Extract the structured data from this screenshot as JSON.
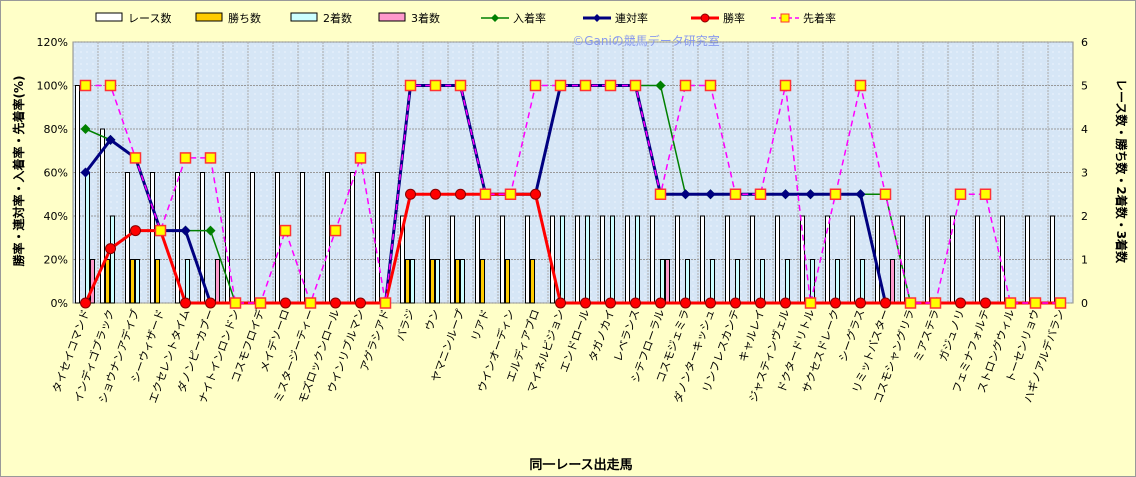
{
  "chart_data": {
    "type": "bar+line",
    "watermark": "©Ganiの競馬データ研究室",
    "xlabel": "同一レース出走馬",
    "ylabel_left": "勝率・連対率・入着率・先着率(%)",
    "ylabel_right": "レース数・勝ち数・2着数・3着数",
    "ylim_left": [
      0,
      120
    ],
    "ylim_right": [
      0,
      6
    ],
    "yticks_left": [
      "0%",
      "20%",
      "40%",
      "60%",
      "80%",
      "100%",
      "120%"
    ],
    "yticks_right": [
      "0",
      "1",
      "2",
      "3",
      "4",
      "5",
      "6"
    ],
    "legend": [
      "レース数",
      "勝ち数",
      "2着数",
      "3着数",
      "入着率",
      "連対率",
      "勝率",
      "先着率"
    ],
    "legend_position": "top",
    "colors": {
      "races": "#ffffff",
      "wins": "#ffcc00",
      "second": "#ccffff",
      "third": "#ff99cc",
      "fukusho": "#008000",
      "rentai": "#000080",
      "win_rate": "#ff0000",
      "sakichaku": "#ff00ff"
    },
    "categories": [
      "タイセイコマンド",
      "インディゴブラック",
      "ショウナンアデイブ",
      "シーウィザード",
      "エクセレントタイム",
      "ダノンピーカブー",
      "ナイトインロンドン",
      "コスモフロイデ",
      "メイデソーロ",
      "ミスタージーティー",
      "モズロックンロール",
      "ウインリブルマン",
      "アグラシアド",
      "バラジ",
      "ウン",
      "ヤマニンループ",
      "リアド",
      "ウインオーディン",
      "エルディアブロ",
      "マイネルビジョン",
      "エンドロール",
      "タガノカイ",
      "レベランス",
      "シテフローラル",
      "コスモジェミラ",
      "ダノンターキッシュ",
      "リンフレスカンテ",
      "キャルレイ",
      "ジャスティンヴェル",
      "ドクタードリトル",
      "サクセスドレーク",
      "シーグラス",
      "リミットバスター",
      "コスモシャングリラ",
      "ミアステラ",
      "ガジュノリ",
      "フェミナフォルテ",
      "ストロングウィル",
      "トーセンリョウ",
      "ハギノアルデバラン"
    ],
    "series": [
      {
        "name": "レース数",
        "axis": "right",
        "values": [
          5,
          4,
          3,
          3,
          3,
          3,
          3,
          3,
          3,
          3,
          3,
          3,
          3,
          2,
          2,
          2,
          2,
          2,
          2,
          2,
          2,
          2,
          2,
          2,
          2,
          2,
          2,
          2,
          2,
          2,
          2,
          2,
          2,
          2,
          2,
          2,
          2,
          2,
          2,
          2
        ]
      },
      {
        "name": "勝ち数",
        "axis": "right",
        "values": [
          0,
          1,
          1,
          1,
          0,
          0,
          0,
          0,
          0,
          0,
          0,
          0,
          0,
          1,
          1,
          1,
          1,
          1,
          1,
          0,
          0,
          0,
          0,
          0,
          0,
          0,
          0,
          0,
          0,
          0,
          0,
          0,
          0,
          0,
          0,
          0,
          0,
          0,
          0,
          0
        ]
      },
      {
        "name": "2着数",
        "axis": "right",
        "values": [
          3,
          2,
          1,
          0,
          1,
          0,
          0,
          0,
          0,
          0,
          0,
          0,
          0,
          1,
          1,
          1,
          0,
          0,
          0,
          2,
          2,
          2,
          2,
          1,
          1,
          1,
          1,
          1,
          1,
          1,
          1,
          1,
          0,
          0,
          0,
          0,
          0,
          0,
          0,
          0
        ]
      },
      {
        "name": "3着数",
        "axis": "right",
        "values": [
          1,
          0,
          0,
          0,
          0,
          1,
          0,
          0,
          0,
          0,
          0,
          0,
          0,
          0,
          0,
          0,
          0,
          0,
          0,
          0,
          0,
          0,
          0,
          1,
          0,
          0,
          0,
          0,
          0,
          0,
          0,
          0,
          1,
          0,
          0,
          0,
          0,
          0,
          0,
          0
        ]
      },
      {
        "name": "入着率",
        "axis": "left",
        "values": [
          80,
          75,
          66.7,
          33.3,
          33.3,
          33.3,
          0,
          0,
          0,
          0,
          0,
          0,
          0,
          100,
          100,
          100,
          50,
          50,
          50,
          100,
          100,
          100,
          100,
          100,
          50,
          50,
          50,
          50,
          50,
          50,
          50,
          50,
          50,
          0,
          0,
          0,
          0,
          0,
          0,
          0
        ]
      },
      {
        "name": "連対率",
        "axis": "left",
        "values": [
          60,
          75,
          66.7,
          33.3,
          33.3,
          0,
          0,
          0,
          0,
          0,
          0,
          0,
          0,
          100,
          100,
          100,
          50,
          50,
          50,
          100,
          100,
          100,
          100,
          50,
          50,
          50,
          50,
          50,
          50,
          50,
          50,
          50,
          0,
          0,
          0,
          0,
          0,
          0,
          0,
          0
        ]
      },
      {
        "name": "勝率",
        "axis": "left",
        "values": [
          0,
          25,
          33.3,
          33.3,
          0,
          0,
          0,
          0,
          0,
          0,
          0,
          0,
          0,
          50,
          50,
          50,
          50,
          50,
          50,
          0,
          0,
          0,
          0,
          0,
          0,
          0,
          0,
          0,
          0,
          0,
          0,
          0,
          0,
          0,
          0,
          0,
          0,
          0,
          0,
          0
        ]
      },
      {
        "name": "先着率",
        "axis": "left",
        "values": [
          100,
          100,
          66.7,
          33.3,
          66.7,
          66.7,
          0,
          0,
          33.3,
          0,
          33.3,
          66.7,
          0,
          100,
          100,
          100,
          50,
          50,
          100,
          100,
          100,
          100,
          100,
          50,
          100,
          100,
          50,
          50,
          100,
          0,
          50,
          100,
          50,
          0,
          0,
          50,
          50,
          0,
          0,
          0
        ]
      }
    ]
  }
}
